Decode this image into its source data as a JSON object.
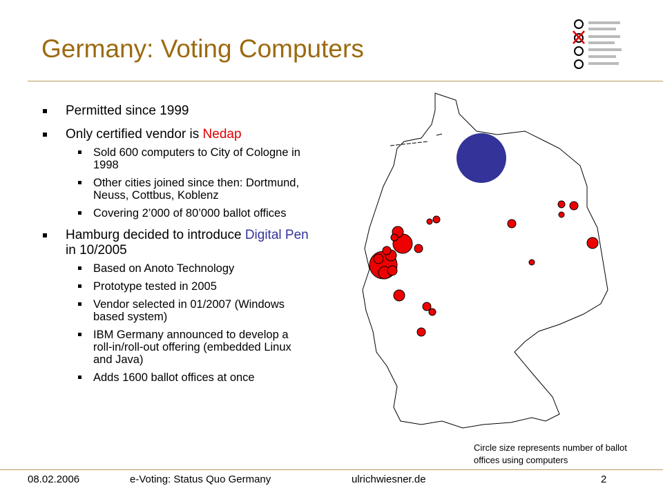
{
  "title": "Germany: Voting Computers",
  "bullets": [
    {
      "parts": [
        "Permitted since 1999"
      ]
    },
    {
      "parts": [
        "Only certified vendor is ",
        "Nedap"
      ],
      "sub": [
        "Sold 600 computers to City of Cologne in 1998",
        "Other cities joined since then: Dortmund, Neuss, Cottbus, Koblenz",
        "Covering 2’000 of 80’000 ballot offices"
      ]
    },
    {
      "parts": [
        "Hamburg decided to introduce ",
        "Digital Pen",
        " in 10/2005"
      ],
      "sub": [
        "Based on Anoto Technology",
        "Prototype tested in 2005",
        "Vendor selected in 01/2007 (Windows based system)",
        "IBM Germany announced to develop a roll-in/roll-out offering (embedded Linux and Java)",
        "Adds 1600 ballot offices at once"
      ]
    }
  ],
  "caption": "Circle size represents number of ballot offices using computers",
  "footer": {
    "date": "08.02.2006",
    "title": "e-Voting: Status Quo Germany",
    "site": "ulrichwiesner.de",
    "page": "2"
  }
}
